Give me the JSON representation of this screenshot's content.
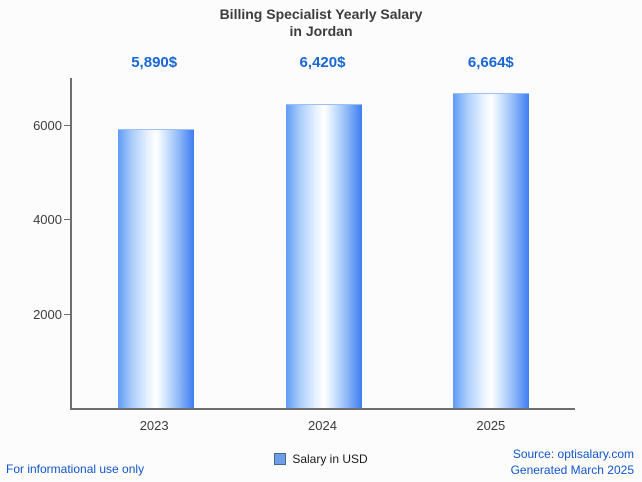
{
  "title": {
    "line1": "Billing Specialist Yearly Salary",
    "line2": "in Jordan"
  },
  "chart_data": {
    "type": "bar",
    "categories": [
      "2023",
      "2024",
      "2025"
    ],
    "values": [
      5890,
      6420,
      6664
    ],
    "value_labels": [
      "5,890$",
      "6,420$",
      "6,664$"
    ],
    "title": "Billing Specialist Yearly Salary in Jordan",
    "xlabel": "",
    "ylabel": "",
    "ylim": [
      0,
      7000
    ],
    "yticks": [
      2000,
      4000,
      6000
    ],
    "grid": false,
    "legend_position": "bottom",
    "legend": [
      "Salary in USD"
    ],
    "bar_color_gradient": [
      "#5e9cf5",
      "#ffffff",
      "#3e7df2"
    ]
  },
  "legend": {
    "label": "Salary in USD",
    "swatch_color": "#6d9eeb"
  },
  "footer": {
    "left": "For informational use only",
    "source": "Source: optisalary.com",
    "generated": "Generated March 2025"
  },
  "colors": {
    "value_label": "#1967d2",
    "footer_text": "#1155cc",
    "axis": "#6e6e6e",
    "title_text": "#3c3c3c"
  }
}
